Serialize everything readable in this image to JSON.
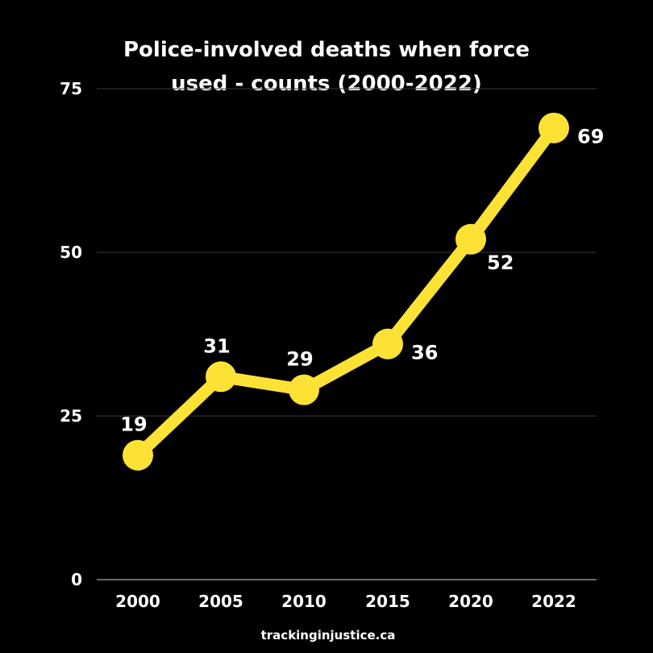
{
  "chart_data": {
    "type": "line",
    "title_lines": [
      "Police-involved deaths when force",
      "used - counts (2000-2022)"
    ],
    "categories": [
      "2000",
      "2005",
      "2010",
      "2015",
      "2020",
      "2022"
    ],
    "series": [
      {
        "values": [
          19,
          31,
          29,
          36,
          52,
          69
        ]
      }
    ],
    "data_labels": [
      "19",
      "31",
      "29",
      "36",
      "52",
      "69"
    ],
    "data_label_side": [
      "above",
      "above",
      "above",
      "right",
      "below-right",
      "right"
    ],
    "y_ticks": [
      0,
      25,
      50,
      75
    ],
    "y_tick_labels": [
      "0",
      "25",
      "50",
      "75"
    ],
    "ylim": [
      0,
      75
    ],
    "grid": true,
    "legend": "none",
    "colors": {
      "background": "#000000",
      "line": "#fde236",
      "text": "#ffffff",
      "grid": "#3a3a3a"
    }
  },
  "footer": {
    "source": "trackinginjustice.ca"
  }
}
